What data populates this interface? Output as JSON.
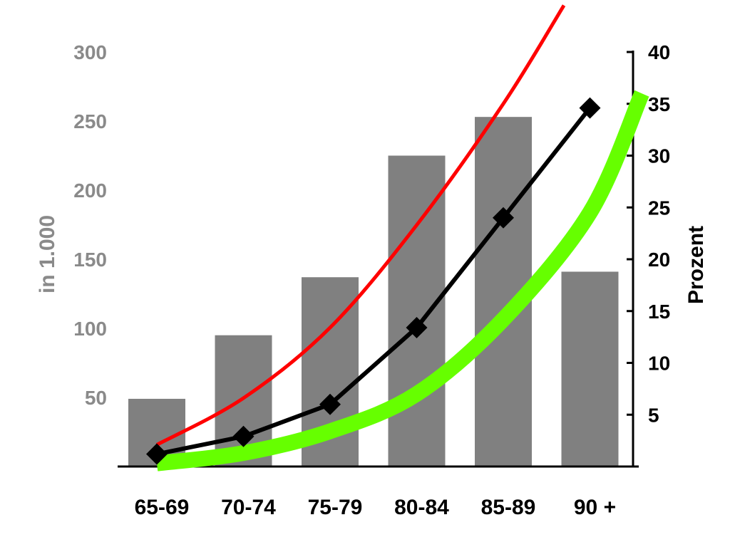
{
  "chart_data": {
    "type": "bar",
    "categories": [
      "65-69",
      "70-74",
      "75-79",
      "80-84",
      "85-89",
      "90 +"
    ],
    "bars": {
      "values": [
        49,
        95,
        137,
        225,
        253,
        141
      ],
      "color": "#808080"
    },
    "y_left": {
      "label": "in 1.000",
      "ticks": [
        "50",
        "100",
        "150",
        "200",
        "250",
        "300"
      ],
      "range": [
        0,
        300
      ]
    },
    "y_right": {
      "label": "Prozent",
      "ticks": [
        "5",
        "10",
        "15",
        "20",
        "25",
        "30",
        "35",
        "40"
      ],
      "range": [
        0,
        40
      ]
    },
    "series": [
      {
        "type": "line",
        "axis": "right",
        "marker": "diamond",
        "color": "#000000",
        "values": [
          1.2,
          2.9,
          6.0,
          13.4,
          24.0,
          34.6
        ]
      },
      {
        "type": "curve",
        "axis": "right",
        "color": "#ff0000",
        "points": [
          [
            0,
            2.1
          ],
          [
            1,
            6.6
          ],
          [
            2,
            13.4
          ],
          [
            3,
            23.3
          ],
          [
            4,
            35.0
          ],
          [
            4.7,
            44.5
          ]
        ]
      },
      {
        "type": "curve",
        "axis": "right",
        "color": "#66ff00",
        "points": [
          [
            0,
            0.3
          ],
          [
            1,
            1.3
          ],
          [
            2,
            3.4
          ],
          [
            3,
            7.0
          ],
          [
            4,
            14.2
          ],
          [
            5,
            24.5
          ],
          [
            5.6,
            36.0
          ]
        ]
      }
    ],
    "grid": false,
    "legend": "none"
  }
}
